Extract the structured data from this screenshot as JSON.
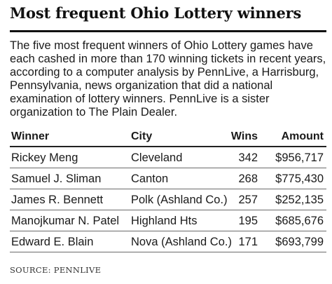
{
  "title": "Most frequent Ohio Lottery winners",
  "intro": "The five most frequent winners of Ohio Lottery games have each cashed in more than 170 winning tickets in recent years, according to a computer analysis by PennLive, a Harrisburg, Pennsylvania, news organization that did a national examination of lottery winners. PennLive is a sister organization to The Plain Dealer.",
  "table": {
    "headers": {
      "winner": "Winner",
      "city": "City",
      "wins": "Wins",
      "amount": "Amount"
    },
    "rows": [
      {
        "winner": "Rickey Meng",
        "city": "Cleveland",
        "wins": "342",
        "amount": "$956,717"
      },
      {
        "winner": "Samuel J. Sliman",
        "city": "Canton",
        "wins": "268",
        "amount": "$775,430"
      },
      {
        "winner": "James R. Bennett",
        "city": "Polk (Ashland Co.)",
        "wins": "257",
        "amount": "$252,135"
      },
      {
        "winner": "Manojkumar N. Patel",
        "city": "Highland Hts",
        "wins": "195",
        "amount": "$685,676"
      },
      {
        "winner": "Edward E. Blain",
        "city": "Nova (Ashland Co.)",
        "wins": "171",
        "amount": "$693,799"
      }
    ]
  },
  "source": "SOURCE: PENNLIVE",
  "chart_data": {
    "type": "table",
    "title": "Most frequent Ohio Lottery winners",
    "columns": [
      "Winner",
      "City",
      "Wins",
      "Amount"
    ],
    "rows": [
      [
        "Rickey Meng",
        "Cleveland",
        342,
        956717
      ],
      [
        "Samuel J. Sliman",
        "Canton",
        268,
        775430
      ],
      [
        "James R. Bennett",
        "Polk (Ashland Co.)",
        257,
        252135
      ],
      [
        "Manojkumar N. Patel",
        "Highland Hts",
        195,
        685676
      ],
      [
        "Edward E. Blain",
        "Nova (Ashland Co.)",
        171,
        693799
      ]
    ]
  }
}
